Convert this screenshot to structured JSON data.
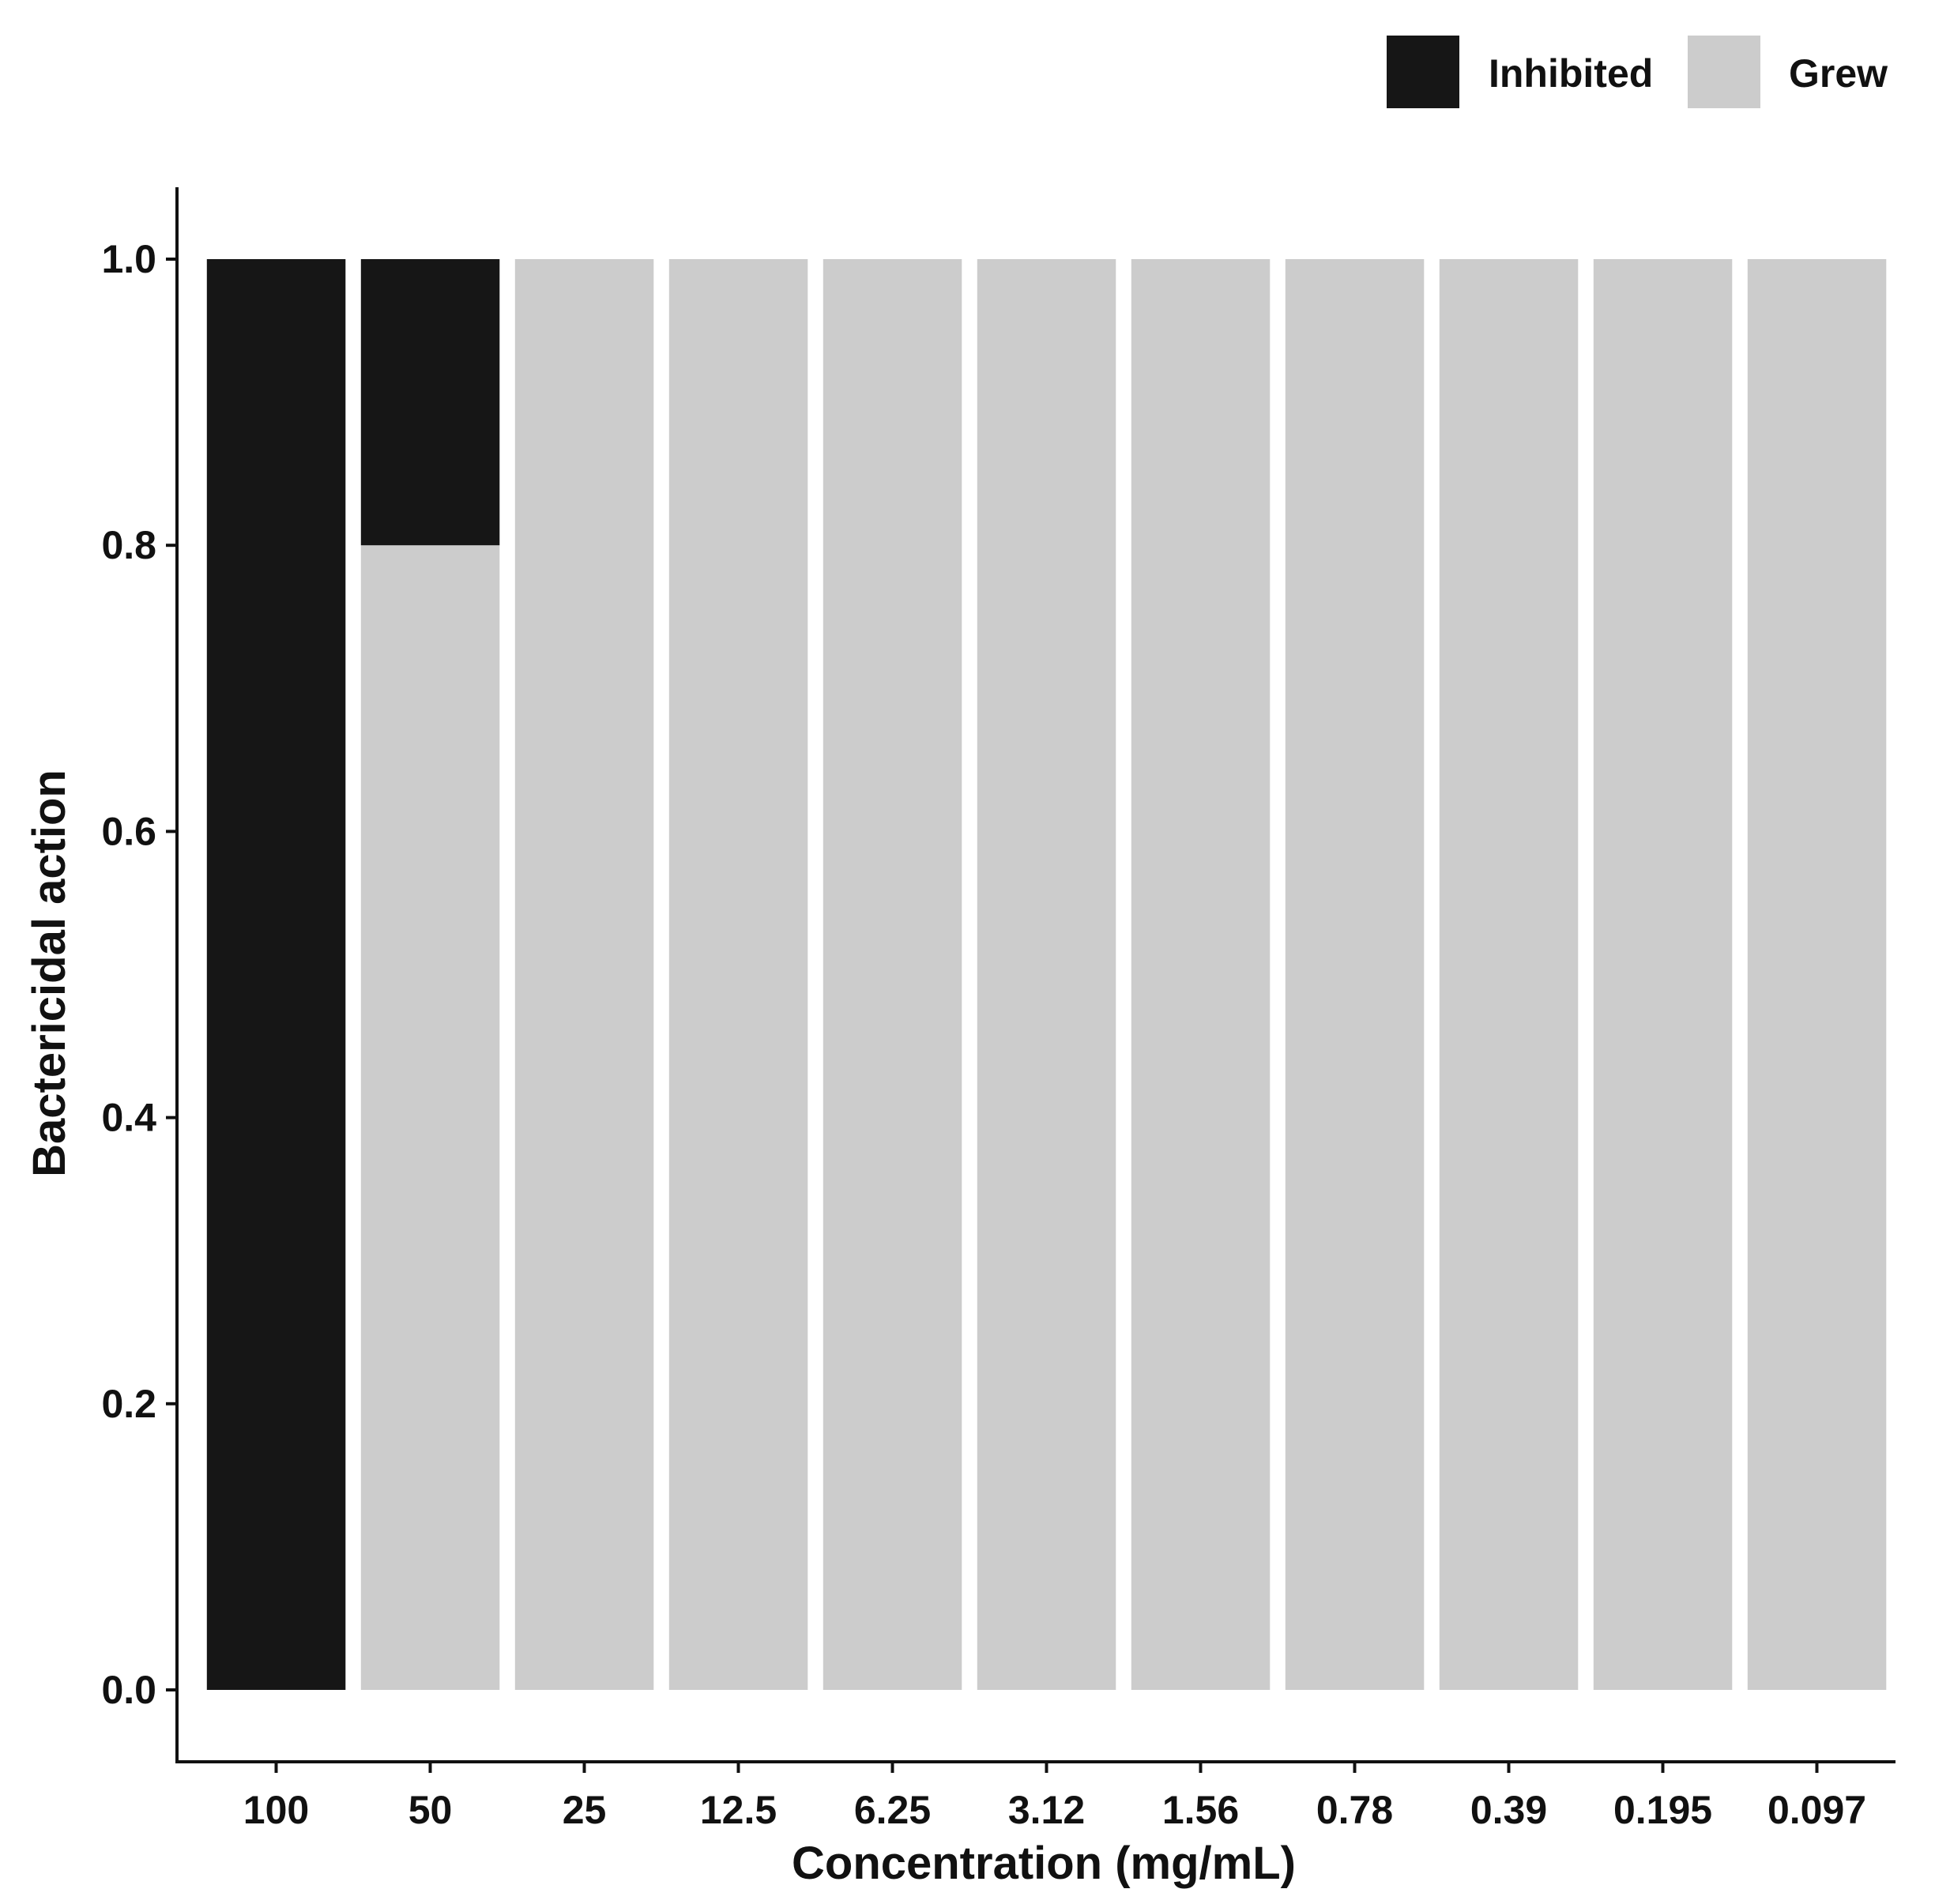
{
  "chart_data": {
    "type": "bar",
    "stacked": true,
    "xlabel": "Concentration (mg/mL)",
    "ylabel": "Bactericidal action",
    "ylim": [
      0,
      1
    ],
    "yticks": [
      "0.0",
      "0.2",
      "0.4",
      "0.6",
      "0.8",
      "1.0"
    ],
    "categories": [
      "100",
      "50",
      "25",
      "12.5",
      "6.25",
      "3.12",
      "1.56",
      "0.78",
      "0.39",
      "0.195",
      "0.097"
    ],
    "series": [
      {
        "name": "Inhibited",
        "color": "#161616",
        "values": [
          1.0,
          0.2,
          0,
          0,
          0,
          0,
          0,
          0,
          0,
          0,
          0
        ]
      },
      {
        "name": "Grew",
        "color": "#cccccc",
        "values": [
          0,
          0.8,
          1.0,
          1.0,
          1.0,
          1.0,
          1.0,
          1.0,
          1.0,
          1.0,
          1.0
        ]
      }
    ],
    "stack_order_bottom_to_top": [
      "Grew",
      "Inhibited"
    ],
    "legend_position": "top-right",
    "grid": false
  }
}
